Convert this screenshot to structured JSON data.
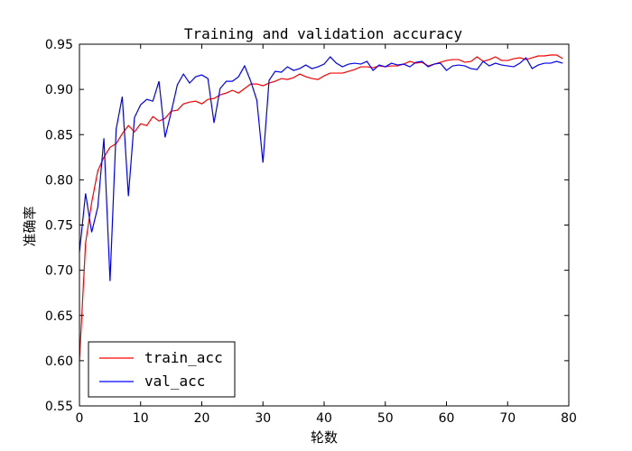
{
  "chart_data": {
    "type": "line",
    "title": "Training and validation accuracy",
    "xlabel": "轮数",
    "ylabel": "准确率",
    "xlim": [
      0,
      80
    ],
    "ylim": [
      0.55,
      0.95
    ],
    "x_ticks": [
      0,
      10,
      20,
      30,
      40,
      50,
      60,
      70,
      80
    ],
    "y_ticks": [
      0.55,
      0.6,
      0.65,
      0.7,
      0.75,
      0.8,
      0.85,
      0.9,
      0.95
    ],
    "x_tick_labels": [
      "0",
      "10",
      "20",
      "30",
      "40",
      "50",
      "60",
      "70",
      "80"
    ],
    "y_tick_labels": [
      "0.55",
      "0.60",
      "0.65",
      "0.70",
      "0.75",
      "0.80",
      "0.85",
      "0.90",
      "0.95"
    ],
    "grid": false,
    "legend_position": "lower-left",
    "series": [
      {
        "name": "train_acc",
        "color": "#ff0000",
        "x": [
          0,
          1,
          2,
          3,
          4,
          5,
          6,
          7,
          8,
          9,
          10,
          11,
          12,
          13,
          14,
          15,
          16,
          17,
          18,
          19,
          20,
          21,
          22,
          23,
          24,
          25,
          26,
          27,
          28,
          29,
          30,
          31,
          32,
          33,
          34,
          35,
          36,
          37,
          38,
          39,
          40,
          41,
          42,
          43,
          44,
          45,
          46,
          47,
          48,
          49,
          50,
          51,
          52,
          53,
          54,
          55,
          56,
          57,
          58,
          59,
          60,
          61,
          62,
          63,
          64,
          65,
          66,
          67,
          68,
          69,
          70,
          71,
          72,
          73,
          74,
          75,
          76,
          77,
          78,
          79
        ],
        "values": [
          0.6,
          0.73,
          0.775,
          0.81,
          0.825,
          0.836,
          0.84,
          0.851,
          0.86,
          0.853,
          0.862,
          0.86,
          0.87,
          0.865,
          0.868,
          0.876,
          0.877,
          0.884,
          0.886,
          0.887,
          0.884,
          0.889,
          0.89,
          0.894,
          0.896,
          0.899,
          0.896,
          0.901,
          0.906,
          0.906,
          0.904,
          0.907,
          0.909,
          0.912,
          0.911,
          0.913,
          0.917,
          0.914,
          0.912,
          0.911,
          0.915,
          0.918,
          0.918,
          0.918,
          0.92,
          0.922,
          0.925,
          0.925,
          0.924,
          0.926,
          0.925,
          0.926,
          0.926,
          0.928,
          0.931,
          0.929,
          0.93,
          0.926,
          0.928,
          0.93,
          0.932,
          0.933,
          0.933,
          0.93,
          0.931,
          0.936,
          0.931,
          0.933,
          0.936,
          0.932,
          0.932,
          0.934,
          0.935,
          0.933,
          0.935,
          0.937,
          0.937,
          0.938,
          0.938,
          0.934
        ]
      },
      {
        "name": "val_acc",
        "color": "#0000ff",
        "x": [
          0,
          1,
          2,
          3,
          4,
          5,
          6,
          7,
          8,
          9,
          10,
          11,
          12,
          13,
          14,
          15,
          16,
          17,
          18,
          19,
          20,
          21,
          22,
          23,
          24,
          25,
          26,
          27,
          28,
          29,
          30,
          31,
          32,
          33,
          34,
          35,
          36,
          37,
          38,
          39,
          40,
          41,
          42,
          43,
          44,
          45,
          46,
          47,
          48,
          49,
          50,
          51,
          52,
          53,
          54,
          55,
          56,
          57,
          58,
          59,
          60,
          61,
          62,
          63,
          64,
          65,
          66,
          67,
          68,
          69,
          70,
          71,
          72,
          73,
          74,
          75,
          76,
          77,
          78,
          79
        ],
        "values": [
          0.72,
          0.785,
          0.742,
          0.77,
          0.846,
          0.688,
          0.856,
          0.892,
          0.782,
          0.869,
          0.883,
          0.889,
          0.887,
          0.909,
          0.847,
          0.875,
          0.905,
          0.917,
          0.907,
          0.914,
          0.916,
          0.912,
          0.863,
          0.901,
          0.909,
          0.909,
          0.914,
          0.926,
          0.909,
          0.888,
          0.819,
          0.91,
          0.92,
          0.919,
          0.925,
          0.921,
          0.923,
          0.927,
          0.923,
          0.925,
          0.928,
          0.936,
          0.929,
          0.925,
          0.928,
          0.929,
          0.928,
          0.931,
          0.921,
          0.927,
          0.925,
          0.929,
          0.927,
          0.928,
          0.925,
          0.93,
          0.931,
          0.925,
          0.928,
          0.929,
          0.921,
          0.926,
          0.927,
          0.926,
          0.923,
          0.922,
          0.931,
          0.926,
          0.929,
          0.927,
          0.926,
          0.925,
          0.929,
          0.935,
          0.923,
          0.927,
          0.929,
          0.929,
          0.931,
          0.929
        ]
      }
    ]
  }
}
